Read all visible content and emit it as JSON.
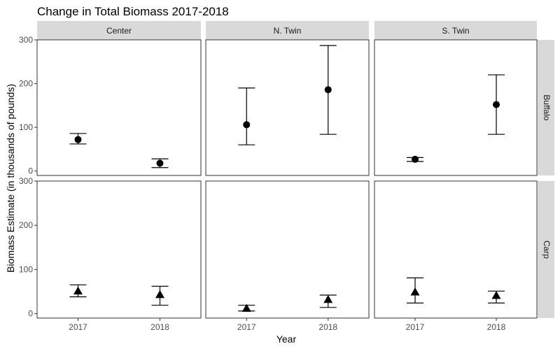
{
  "chart_data": {
    "type": "scatter",
    "title": "Change in Total Biomass 2017-2018",
    "xlabel": "Year",
    "ylabel": "Biomass Estimate (in thousands of pounds)",
    "x_categories": [
      "2017",
      "2018"
    ],
    "y_ticks": [
      0,
      100,
      200,
      300
    ],
    "ylim": [
      -10,
      300
    ],
    "grid": false,
    "columns": [
      "Center",
      "N. Twin",
      "S. Twin"
    ],
    "rows": [
      {
        "label": "Buffalo",
        "marker": "circle"
      },
      {
        "label": "Carp",
        "marker": "triangle"
      }
    ],
    "panels": [
      {
        "row": "Buffalo",
        "column": "Center",
        "points": [
          {
            "x": "2017",
            "y": 72,
            "ymin": 62,
            "ymax": 86
          },
          {
            "x": "2018",
            "y": 18,
            "ymin": 8,
            "ymax": 28
          }
        ]
      },
      {
        "row": "Buffalo",
        "column": "N. Twin",
        "points": [
          {
            "x": "2017",
            "y": 106,
            "ymin": 60,
            "ymax": 190
          },
          {
            "x": "2018",
            "y": 186,
            "ymin": 84,
            "ymax": 287
          }
        ]
      },
      {
        "row": "Buffalo",
        "column": "S. Twin",
        "points": [
          {
            "x": "2017",
            "y": 27,
            "ymin": 22,
            "ymax": 31
          },
          {
            "x": "2018",
            "y": 152,
            "ymin": 84,
            "ymax": 220
          }
        ]
      },
      {
        "row": "Carp",
        "column": "Center",
        "points": [
          {
            "x": "2017",
            "y": 51,
            "ymin": 38,
            "ymax": 65
          },
          {
            "x": "2018",
            "y": 43,
            "ymin": 19,
            "ymax": 62
          }
        ]
      },
      {
        "row": "Carp",
        "column": "N. Twin",
        "points": [
          {
            "x": "2017",
            "y": 12,
            "ymin": 6,
            "ymax": 19
          },
          {
            "x": "2018",
            "y": 32,
            "ymin": 14,
            "ymax": 42
          }
        ]
      },
      {
        "row": "Carp",
        "column": "S. Twin",
        "points": [
          {
            "x": "2017",
            "y": 49,
            "ymin": 24,
            "ymax": 81
          },
          {
            "x": "2018",
            "y": 41,
            "ymin": 24,
            "ymax": 51
          }
        ]
      }
    ]
  }
}
